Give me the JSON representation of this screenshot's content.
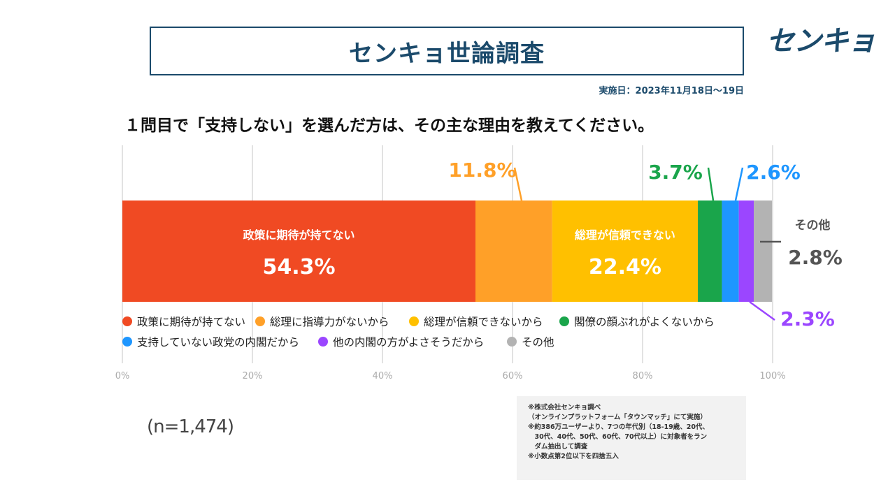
{
  "header": {
    "title": "センキョ世論調査",
    "logo_text": "センキョ",
    "date": "実施日：2023年11月18日〜19日"
  },
  "question": "１問目で「支持しない」を選んだ方は、その主な理由を教えてください。",
  "sample": "(n=1,474)",
  "notes": [
    "※株式会社センキョ調べ",
    "（オンラインプラットフォーム「タウンマッチ」にて実施）",
    "※約386万ユーザーより、7つの年代別（18-19歳、20代、",
    "　30代、40代、50代、60代、70代以上）に対象者をラン",
    "　ダム抽出して調査",
    "※小数点第2位以下を四捨五入"
  ],
  "chart_data": {
    "type": "bar",
    "orientation": "horizontal-stacked-100",
    "series": [
      {
        "name": "政策に期待が持てない",
        "short_label": "政策に期待が持てない",
        "value": 54.3,
        "display": "54.3%",
        "color": "#f04a23"
      },
      {
        "name": "総理に指導力がないから",
        "short_label": "",
        "value": 11.8,
        "display": "11.8%",
        "color": "#ffa028"
      },
      {
        "name": "総理が信頼できないから",
        "short_label": "総理が信頼できない",
        "value": 22.4,
        "display": "22.4%",
        "color": "#ffc000"
      },
      {
        "name": "閣僚の顔ぶれがよくないから",
        "short_label": "",
        "value": 3.7,
        "display": "3.7%",
        "color": "#1aa54b"
      },
      {
        "name": "支持していない政党の内閣だから",
        "short_label": "",
        "value": 2.6,
        "display": "2.6%",
        "color": "#1e96ff"
      },
      {
        "name": "他の内閣の方がよさそうだから",
        "short_label": "",
        "value": 2.3,
        "display": "2.3%",
        "color": "#9b46ff"
      },
      {
        "name": "その他",
        "short_label": "その他",
        "value": 2.8,
        "display": "2.8%",
        "color": "#b3b3b3"
      }
    ],
    "xlim": [
      0,
      100
    ],
    "ticks": [
      "0%",
      "20%",
      "40%",
      "60%",
      "80%",
      "100%"
    ],
    "grid": true,
    "legend": "bottom"
  }
}
